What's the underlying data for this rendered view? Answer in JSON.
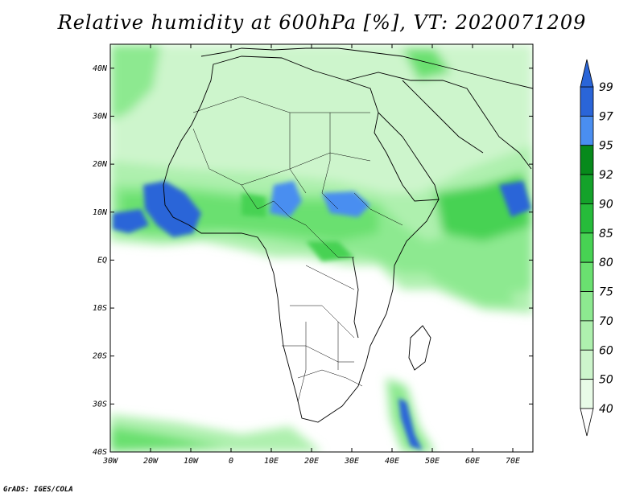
{
  "title": "Relative humidity at 600hPa [%], VT: 2020071209",
  "credit": "GrADS: IGES/COLA",
  "lat_labels": [
    "40N",
    "30N",
    "20N",
    "10N",
    "EQ",
    "10S",
    "20S",
    "30S",
    "40S"
  ],
  "lon_labels": [
    "30W",
    "20W",
    "10W",
    "0",
    "10E",
    "20E",
    "30E",
    "40E",
    "50E",
    "60E",
    "70E"
  ],
  "colorbar": {
    "labels": [
      "99",
      "97",
      "95",
      "92",
      "90",
      "85",
      "80",
      "75",
      "70",
      "60",
      "50",
      "40"
    ],
    "colors": [
      "#2a65d8",
      "#4a8ef0",
      "#078a1b",
      "#14a22a",
      "#26bb3a",
      "#47d253",
      "#6ae070",
      "#8de990",
      "#aef0ae",
      "#cdf5cc",
      "#e8fbe7"
    ]
  },
  "map": {
    "lon_range": [
      -30,
      75
    ],
    "lat_range": [
      -40,
      45
    ],
    "projection": "latlon"
  }
}
